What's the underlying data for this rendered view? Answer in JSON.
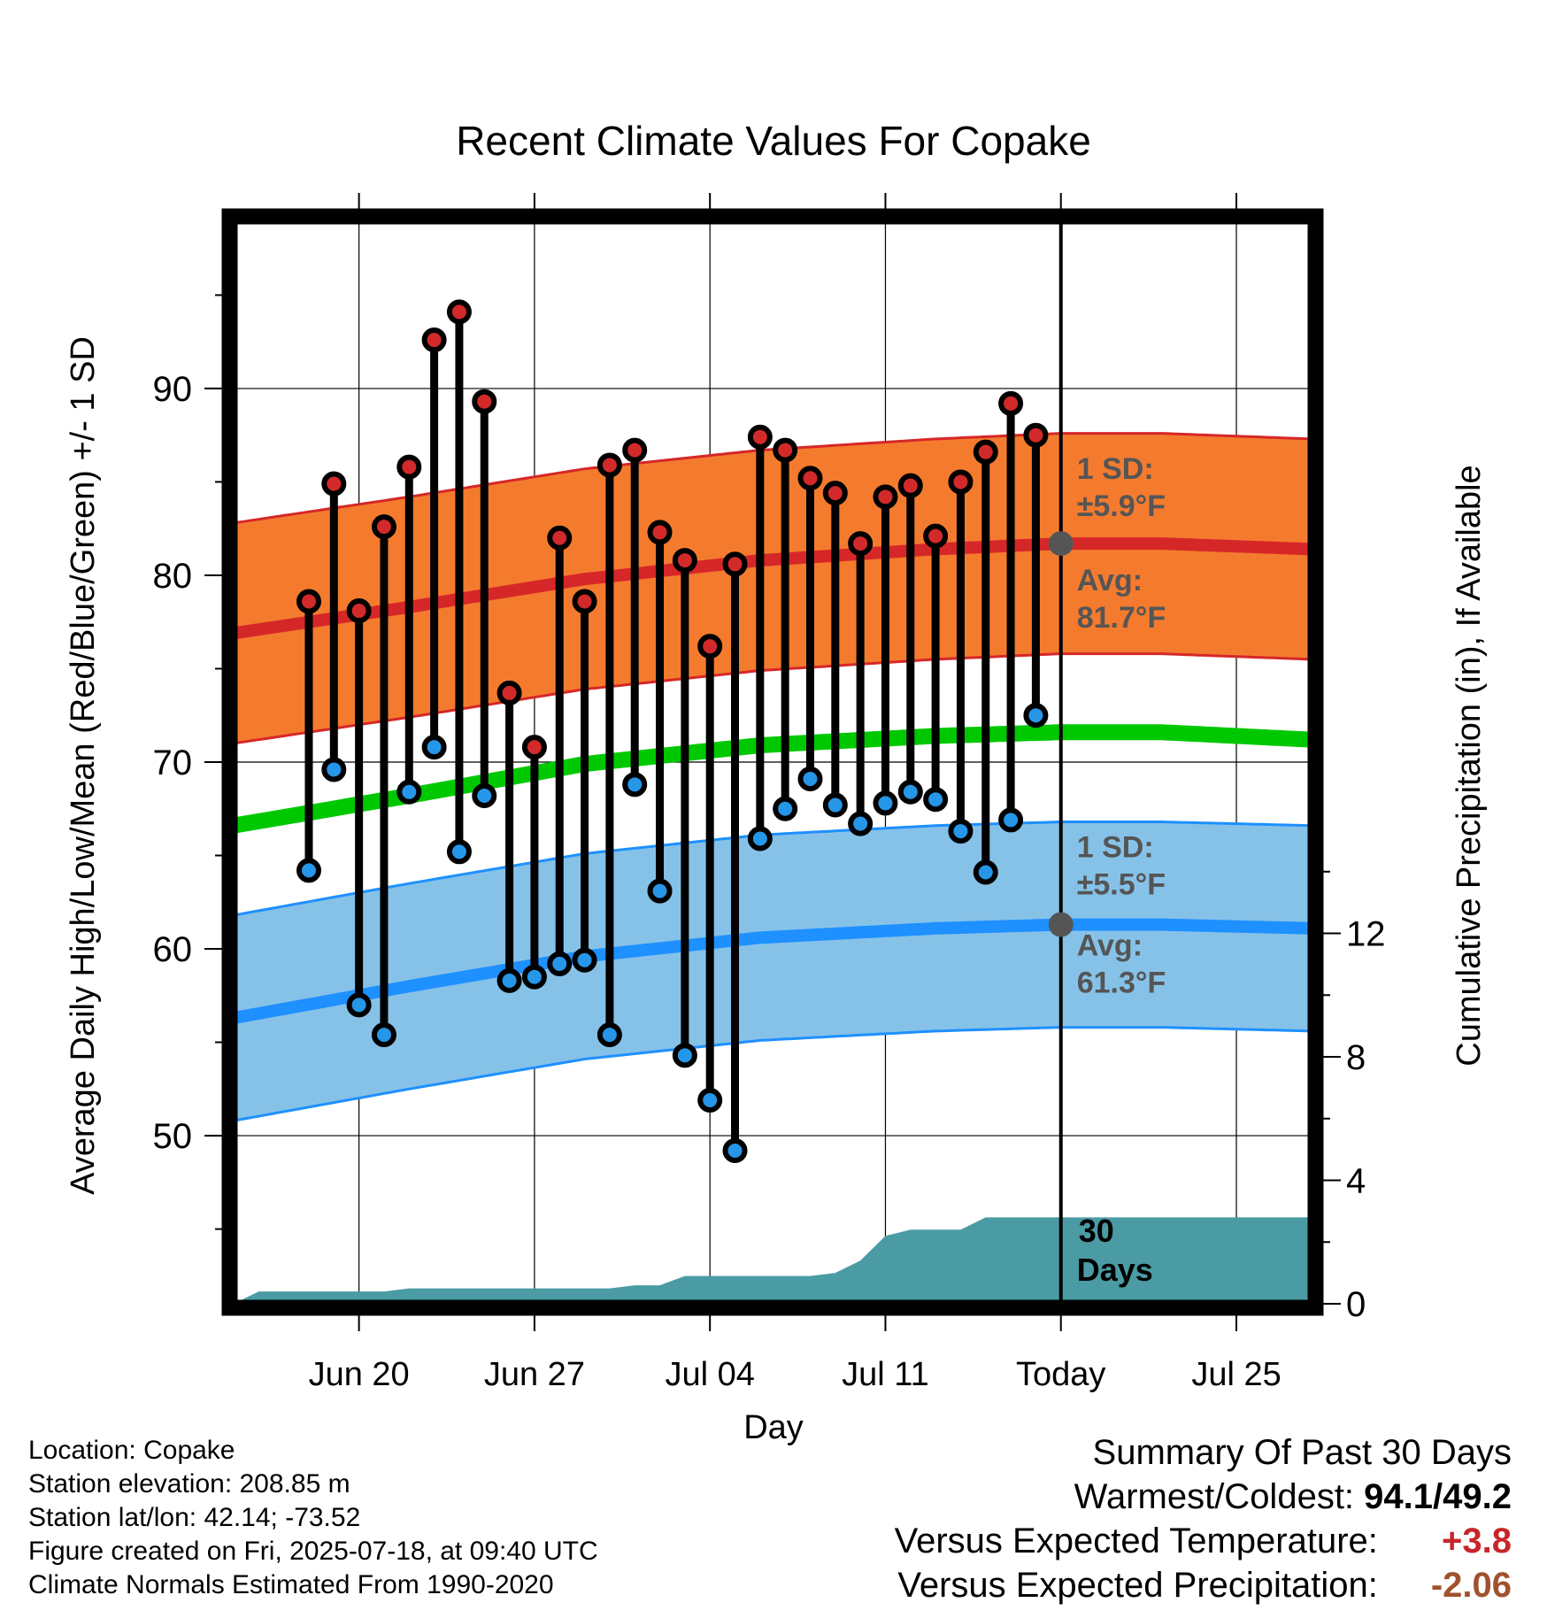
{
  "chart_data": {
    "type": "line",
    "title": "Recent Climate Values For Copake",
    "xlabel": "Day",
    "ylabel": "Average Daily High/Low/Mean (Red/Blue/Green) +/- 1 SD",
    "y2label": "Cumulative Precipitation (in), If Available",
    "ylim": [
      41,
      99
    ],
    "y2lim": [
      0,
      35.1
    ],
    "yticks": [
      50,
      60,
      70,
      80,
      90
    ],
    "y2ticks": [
      0,
      4,
      8,
      12
    ],
    "xlim": [
      "2025-06-15",
      "2025-07-28"
    ],
    "xticks": [
      {
        "date": "2025-06-20",
        "label": "Jun 20"
      },
      {
        "date": "2025-06-27",
        "label": "Jun 27"
      },
      {
        "date": "2025-07-04",
        "label": "Jul 04"
      },
      {
        "date": "2025-07-11",
        "label": "Jul 11"
      },
      {
        "date": "2025-07-18",
        "label": "Today"
      },
      {
        "date": "2025-07-25",
        "label": "Jul 25"
      }
    ],
    "grid": true,
    "today": "2025-07-18",
    "dates": [
      "2025-06-18",
      "2025-06-19",
      "2025-06-20",
      "2025-06-21",
      "2025-06-22",
      "2025-06-23",
      "2025-06-24",
      "2025-06-25",
      "2025-06-26",
      "2025-06-27",
      "2025-06-28",
      "2025-06-29",
      "2025-06-30",
      "2025-07-01",
      "2025-07-02",
      "2025-07-03",
      "2025-07-04",
      "2025-07-05",
      "2025-07-06",
      "2025-07-07",
      "2025-07-08",
      "2025-07-09",
      "2025-07-10",
      "2025-07-11",
      "2025-07-12",
      "2025-07-13",
      "2025-07-14",
      "2025-07-15",
      "2025-07-16",
      "2025-07-17"
    ],
    "highs": [
      78.6,
      84.9,
      78.1,
      82.6,
      85.8,
      92.6,
      94.1,
      89.3,
      73.7,
      70.8,
      82.0,
      78.6,
      85.9,
      86.7,
      82.3,
      80.8,
      76.2,
      80.6,
      87.4,
      86.7,
      85.2,
      84.4,
      81.7,
      84.2,
      84.8,
      82.1,
      85.0,
      86.6,
      89.2,
      87.5
    ],
    "lows": [
      64.2,
      69.6,
      57.0,
      55.4,
      68.4,
      70.8,
      65.2,
      68.2,
      58.3,
      58.5,
      59.2,
      59.4,
      55.4,
      68.8,
      63.1,
      54.3,
      51.9,
      49.2,
      65.9,
      67.5,
      69.1,
      67.7,
      66.7,
      67.8,
      68.4,
      68.0,
      66.3,
      64.1,
      66.9,
      72.5
    ],
    "normal_dates": [
      "2025-06-15",
      "2025-06-22",
      "2025-06-29",
      "2025-07-06",
      "2025-07-13",
      "2025-07-18",
      "2025-07-22",
      "2025-07-28"
    ],
    "normal_high": [
      76.9,
      78.3,
      79.8,
      80.8,
      81.4,
      81.7,
      81.7,
      81.4
    ],
    "normal_high_sd": 5.9,
    "normal_low": [
      56.3,
      58.0,
      59.6,
      60.6,
      61.1,
      61.3,
      61.3,
      61.1
    ],
    "normal_low_sd": 5.5,
    "normal_mean": [
      66.6,
      68.2,
      69.9,
      70.9,
      71.4,
      71.6,
      71.6,
      71.2
    ],
    "precip_cumulative": [
      {
        "date": "2025-06-15",
        "value": 0.0
      },
      {
        "date": "2025-06-16",
        "value": 0.4
      },
      {
        "date": "2025-06-21",
        "value": 0.4
      },
      {
        "date": "2025-06-22",
        "value": 0.5
      },
      {
        "date": "2025-06-26",
        "value": 0.5
      },
      {
        "date": "2025-06-30",
        "value": 0.5
      },
      {
        "date": "2025-07-01",
        "value": 0.6
      },
      {
        "date": "2025-07-02",
        "value": 0.6
      },
      {
        "date": "2025-07-03",
        "value": 0.9
      },
      {
        "date": "2025-07-08",
        "value": 0.9
      },
      {
        "date": "2025-07-09",
        "value": 1.0
      },
      {
        "date": "2025-07-10",
        "value": 1.4
      },
      {
        "date": "2025-07-11",
        "value": 2.2
      },
      {
        "date": "2025-07-12",
        "value": 2.4
      },
      {
        "date": "2025-07-14",
        "value": 2.4
      },
      {
        "date": "2025-07-15",
        "value": 2.8
      },
      {
        "date": "2025-07-17",
        "value": 2.8
      },
      {
        "date": "2025-07-28",
        "value": 2.8
      }
    ],
    "annotations": {
      "high_sd_label": "1 SD:",
      "high_sd_value": "±5.9°F",
      "high_avg_label": "Avg:",
      "high_avg_value": "81.7°F",
      "low_sd_label": "1 SD:",
      "low_sd_value": "±5.5°F",
      "low_avg_label": "Avg:",
      "low_avg_value": "61.3°F",
      "days_count": "30",
      "days_label": "Days"
    },
    "colors": {
      "high_band": "#f47b2e",
      "high_line": "#d62728",
      "low_band": "#86c2e8",
      "low_line": "#1e90ff",
      "mean_line": "#00c800",
      "precip": "#4a9ba3",
      "high_dot": "#d22a2a",
      "low_dot": "#2696e8",
      "annotation": "#555555"
    }
  },
  "footer": {
    "location": "Location: Copake",
    "elevation": "Station elevation: 208.85 m",
    "latlon": "Station lat/lon: 42.14; -73.52",
    "created": "Figure created on Fri, 2025-07-18, at 09:40 UTC",
    "normals": "Climate Normals Estimated From 1990-2020"
  },
  "summary": {
    "title": "Summary Of Past 30 Days",
    "warmest_label": "Warmest/Coldest:",
    "warmest_value": "94.1/49.2",
    "temp_label": "Versus Expected Temperature:",
    "temp_value": "+3.8",
    "precip_label": "Versus Expected Precipitation:",
    "precip_value": "-2.06"
  }
}
